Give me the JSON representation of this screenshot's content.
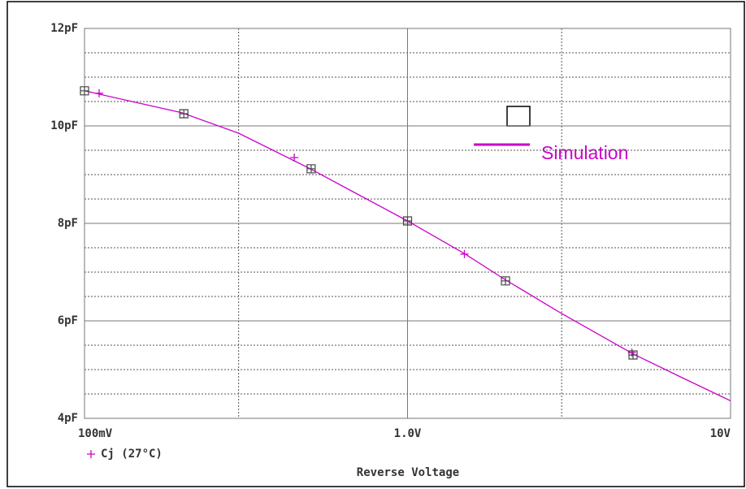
{
  "chart_data": {
    "type": "line",
    "xlabel": "Reverse Voltage",
    "xscale": "log",
    "xlim": [
      0.1,
      10
    ],
    "xticks": [
      {
        "value": 0.1,
        "label": "100mV"
      },
      {
        "value": 1,
        "label": "1.0V"
      },
      {
        "value": 10,
        "label": "10V"
      }
    ],
    "xminorgrid": [
      0.3,
      3
    ],
    "ylim": [
      4,
      12
    ],
    "yticks": [
      {
        "value": 4,
        "label": "4pF"
      },
      {
        "value": 6,
        "label": "6pF"
      },
      {
        "value": 8,
        "label": "8pF"
      },
      {
        "value": 10,
        "label": "10pF"
      },
      {
        "value": 12,
        "label": "12pF"
      }
    ],
    "yminorgrid": [
      4.5,
      5,
      5.5,
      6.5,
      7,
      7.5,
      8.5,
      9,
      9.5,
      10.5,
      11,
      11.5
    ],
    "grid": true,
    "annotation": "Simulation",
    "series": [
      {
        "name": "Cj (27°C)",
        "color": "#cc00cc",
        "x": [
          0.1,
          0.2,
          0.3,
          0.5,
          0.7,
          1,
          1.5,
          2,
          3,
          5,
          7,
          10
        ],
        "values": [
          10.72,
          10.27,
          9.85,
          9.12,
          8.6,
          8.05,
          7.38,
          6.85,
          6.15,
          5.32,
          4.85,
          4.36
        ],
        "marker_x": [
          0.111,
          0.446,
          1.5,
          4.95
        ],
        "marker_values": [
          10.67,
          9.35,
          7.37,
          5.35
        ]
      },
      {
        "color": "#444444",
        "x": [
          0.1,
          0.203,
          0.503,
          1,
          2.01,
          4.99
        ],
        "values": [
          10.72,
          10.25,
          9.12,
          8.05,
          6.82,
          5.3
        ]
      }
    ]
  }
}
